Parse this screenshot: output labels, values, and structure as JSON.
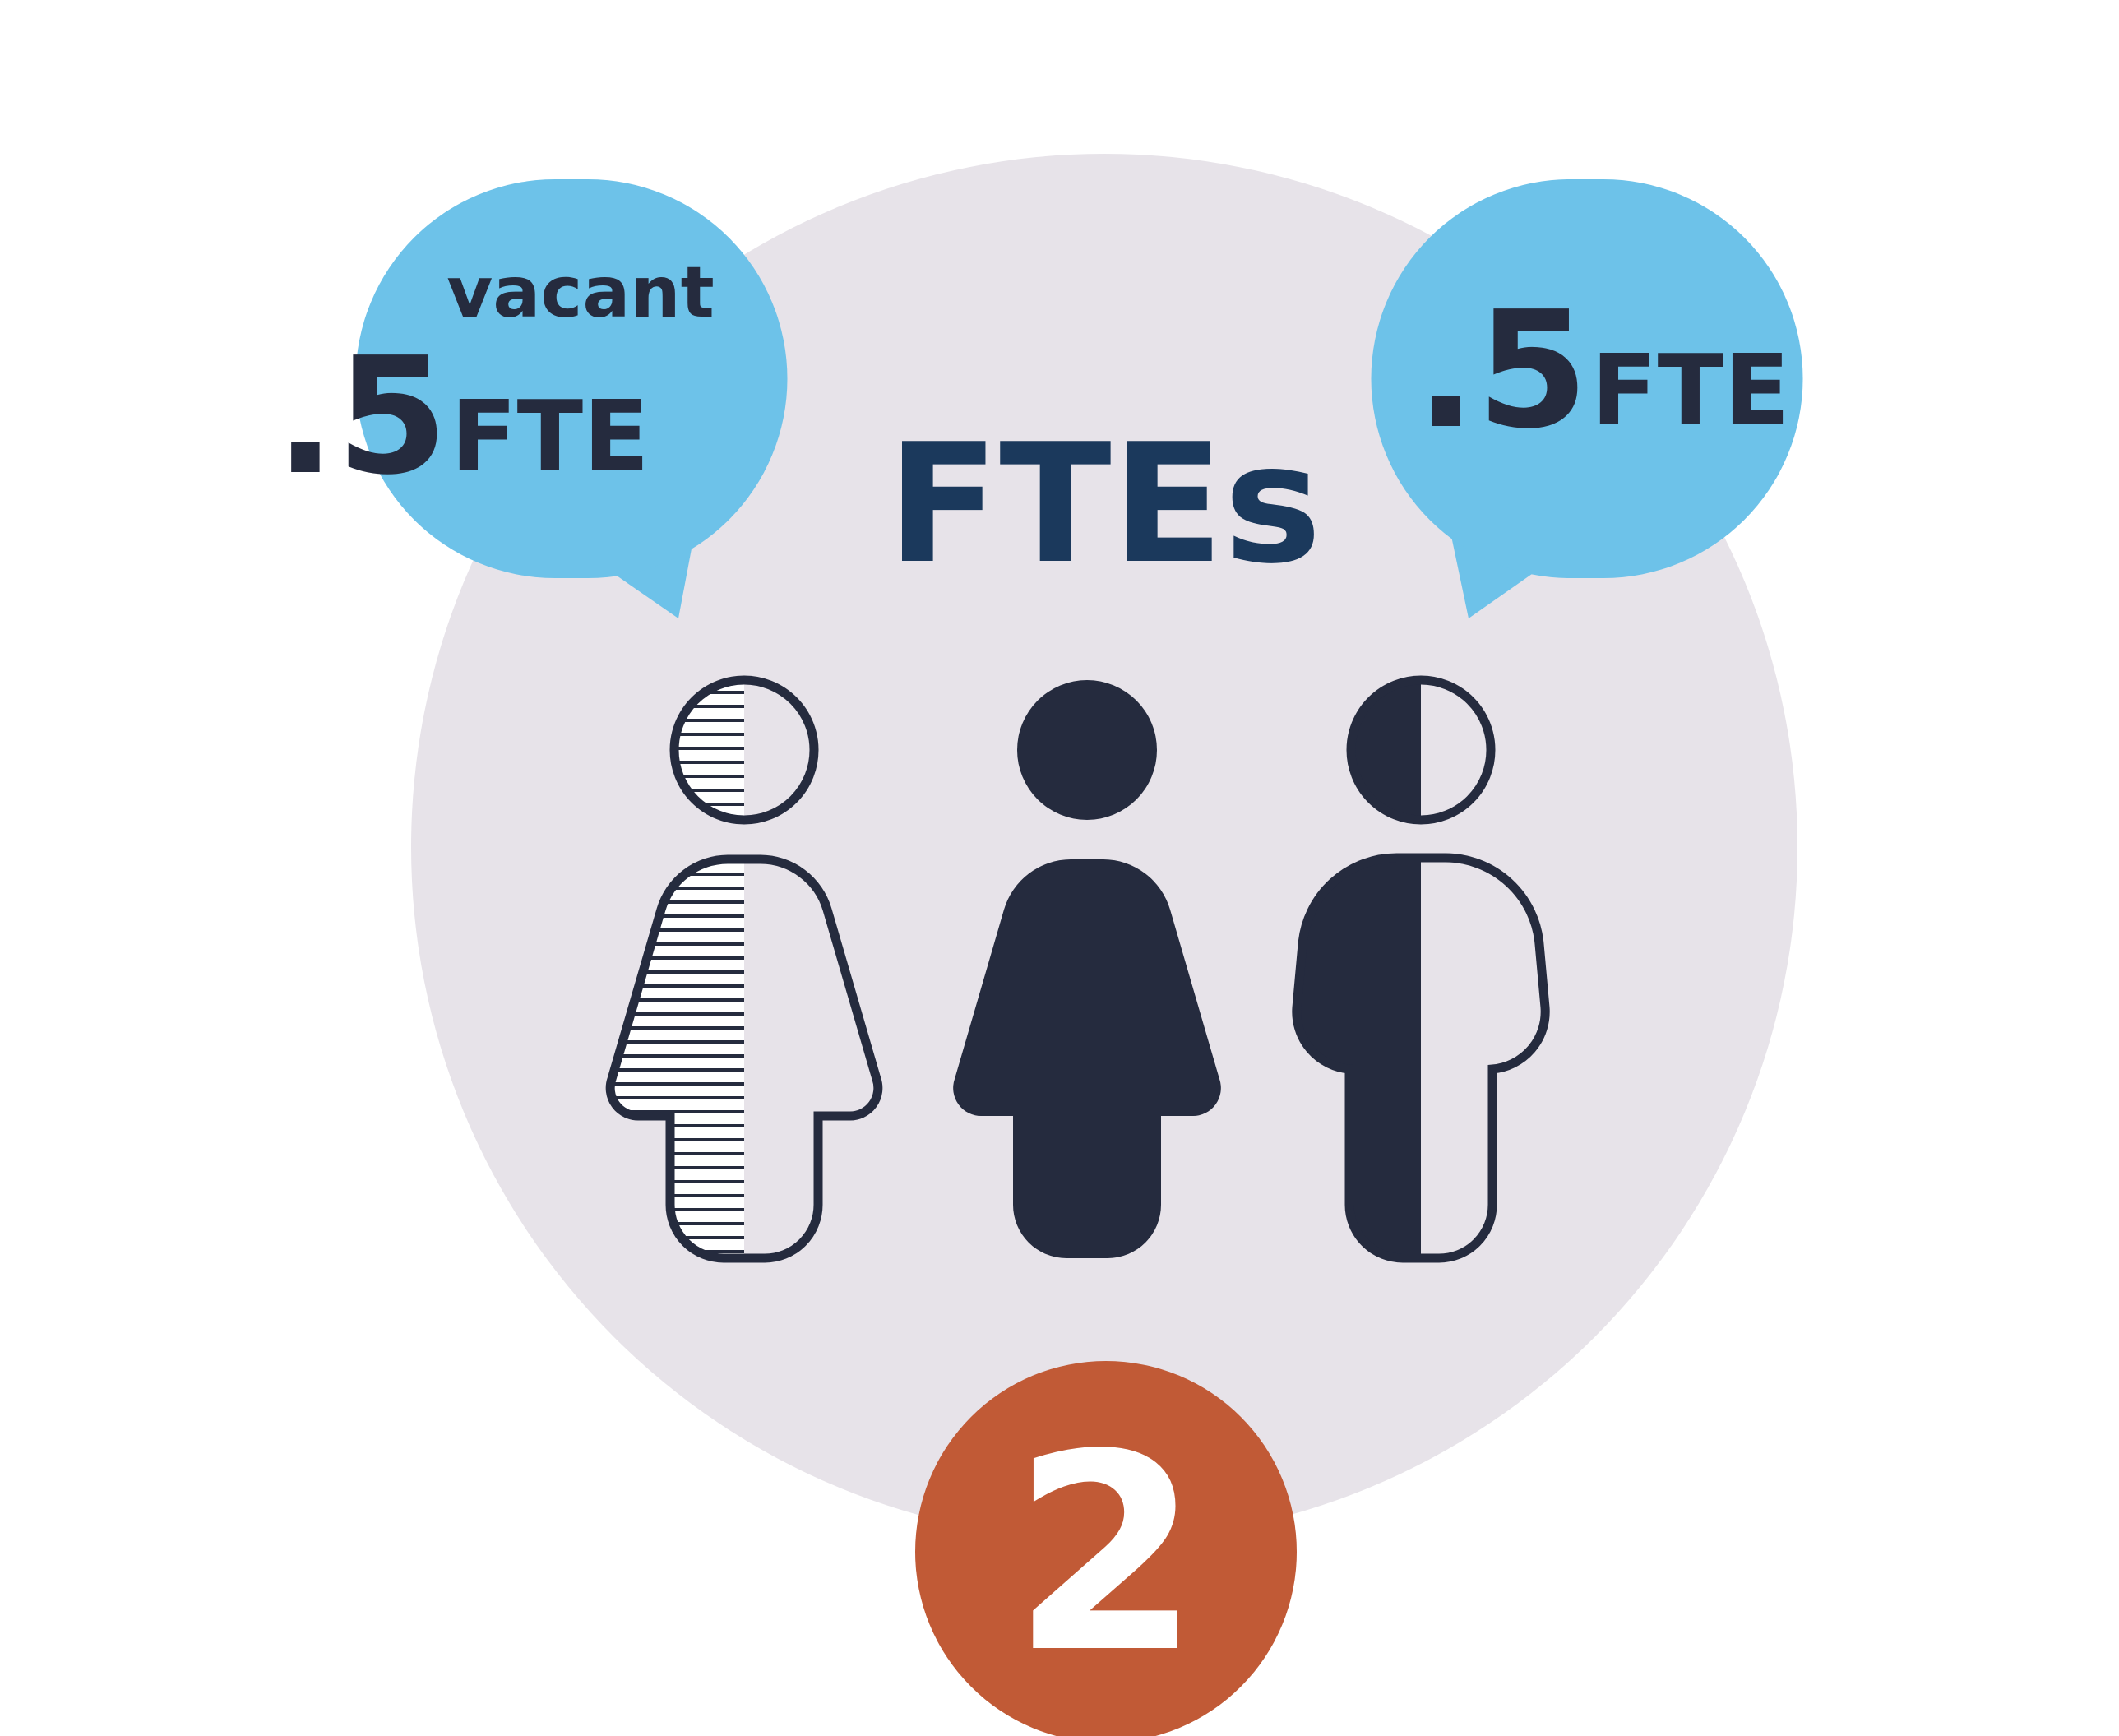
{
  "title": "FTEs",
  "bubbles": [
    {
      "top_label": "vacant",
      "amount": ".5",
      "unit": "FTE"
    },
    {
      "amount": ".5",
      "unit": "FTE"
    }
  ],
  "figures": [
    {
      "state": "vacant",
      "filled_fraction": 0.5
    },
    {
      "state": "filled",
      "filled_fraction": 1.0
    },
    {
      "state": "half-filled",
      "filled_fraction": 0.5
    }
  ],
  "badge": {
    "value": "2"
  },
  "colors": {
    "background": "#ffffff",
    "circle": "#e7e3e9",
    "bubble": "#6dc2e9",
    "title": "#1b395c",
    "dark": "#252b3e",
    "badge": "#c15a36",
    "badge_text": "#ffffff"
  }
}
